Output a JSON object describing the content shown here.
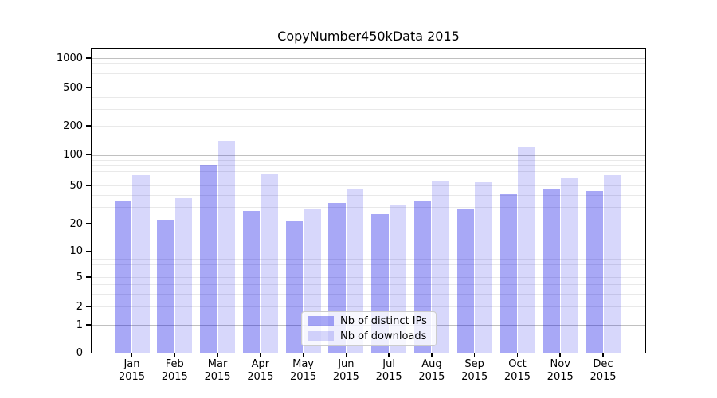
{
  "title": "CopyNumber450kData 2015",
  "legend": {
    "items": [
      {
        "label": "Nb of distinct IPs",
        "color_key": "ips"
      },
      {
        "label": "Nb of downloads",
        "color_key": "downloads"
      }
    ]
  },
  "colors": {
    "ips": "rgba(0,0,230,0.34)",
    "downloads": "rgba(0,0,230,0.155)",
    "major_grid": "#c0c0c0",
    "minor_grid": "#e9e9e9",
    "axis": "#000000",
    "legend_border": "#cccccc",
    "legend_bg": "rgba(255,255,255,0.8)"
  },
  "x_axis": {
    "months": [
      "Jan",
      "Feb",
      "Mar",
      "Apr",
      "May",
      "Jun",
      "Jul",
      "Aug",
      "Sep",
      "Oct",
      "Nov",
      "Dec"
    ],
    "year": "2015"
  },
  "y_axis": {
    "tick_labels": [
      "0",
      "1",
      "2",
      "5",
      "10",
      "20",
      "50",
      "100",
      "200",
      "500",
      "1000"
    ]
  },
  "chart_data": {
    "type": "bar",
    "title": "CopyNumber450kData 2015",
    "xlabel": "",
    "ylabel": "",
    "categories": [
      "Jan 2015",
      "Feb 2015",
      "Mar 2015",
      "Apr 2015",
      "May 2015",
      "Jun 2015",
      "Jul 2015",
      "Aug 2015",
      "Sep 2015",
      "Oct 2015",
      "Nov 2015",
      "Dec 2015"
    ],
    "series": [
      {
        "name": "Nb of distinct IPs",
        "values": [
          35,
          22,
          80,
          27,
          21,
          33,
          25,
          35,
          28,
          41,
          46,
          44
        ]
      },
      {
        "name": "Nb of downloads",
        "values": [
          63,
          37,
          140,
          65,
          28,
          47,
          31,
          55,
          54,
          120,
          60,
          64
        ]
      }
    ],
    "yscale": "symlog",
    "yticks": [
      0,
      1,
      2,
      5,
      10,
      20,
      50,
      100,
      200,
      500,
      1000
    ],
    "ylim": [
      0,
      1280
    ],
    "grid": true,
    "legend_position": "inside lower-center"
  }
}
